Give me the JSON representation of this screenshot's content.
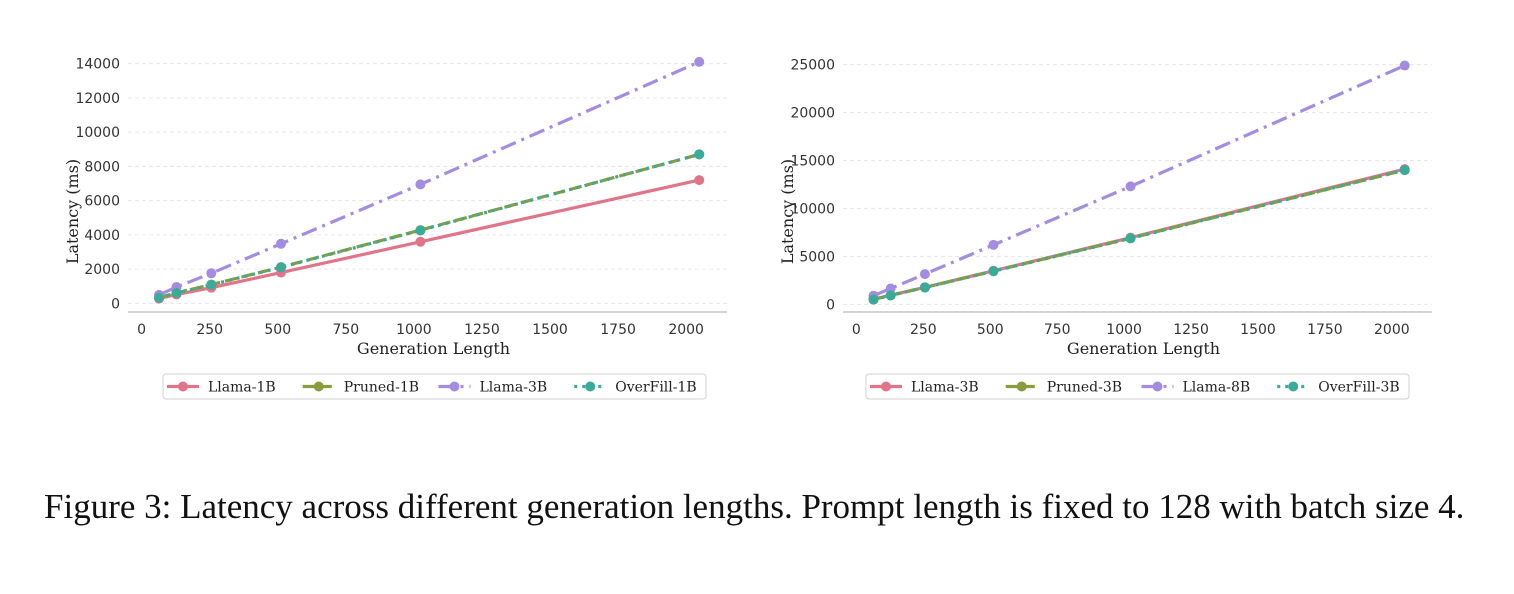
{
  "caption": "Figure 3: Latency across different generation lengths. Prompt length is fixed to 128 with batch size 4.",
  "chart_data": [
    {
      "type": "line",
      "xlabel": "Generation Length",
      "ylabel": "Latency (ms)",
      "xlim": [
        -50,
        2150
      ],
      "ylim": [
        -500,
        14500
      ],
      "xticks": [
        0,
        250,
        500,
        750,
        1000,
        1250,
        1500,
        1750,
        2000
      ],
      "yticks": [
        0,
        2000,
        4000,
        6000,
        8000,
        10000,
        12000,
        14000
      ],
      "grid": "y",
      "legend": "bottom",
      "x": [
        64,
        128,
        256,
        512,
        1024,
        2048
      ],
      "series": [
        {
          "name": "Llama-1B",
          "color": "#e0758a",
          "style": "solid",
          "values": [
            280,
            520,
            920,
            1800,
            3600,
            7200
          ]
        },
        {
          "name": "Pruned-1B",
          "color": "#8a9c3c",
          "style": "dashed",
          "values": [
            340,
            620,
            1100,
            2120,
            4280,
            8700
          ]
        },
        {
          "name": "Llama-3B",
          "color": "#a48ce0",
          "style": "dashdot",
          "values": [
            500,
            960,
            1760,
            3480,
            6950,
            14100
          ]
        },
        {
          "name": "OverFill-1B",
          "color": "#3aaa9a",
          "style": "dotted",
          "values": [
            330,
            610,
            1090,
            2110,
            4260,
            8700
          ]
        }
      ]
    },
    {
      "type": "line",
      "xlabel": "Generation Length",
      "ylabel": "Latency (ms)",
      "xlim": [
        -50,
        2150
      ],
      "ylim": [
        -800,
        26000
      ],
      "xticks": [
        0,
        250,
        500,
        750,
        1000,
        1250,
        1500,
        1750,
        2000
      ],
      "yticks": [
        0,
        5000,
        10000,
        15000,
        20000,
        25000
      ],
      "grid": "y",
      "legend": "bottom",
      "x": [
        64,
        128,
        256,
        512,
        1024,
        2048
      ],
      "series": [
        {
          "name": "Llama-3B",
          "color": "#e0758a",
          "style": "solid",
          "values": [
            520,
            950,
            1780,
            3500,
            6950,
            14100
          ]
        },
        {
          "name": "Pruned-3B",
          "color": "#8a9c3c",
          "style": "dashed",
          "values": [
            510,
            940,
            1760,
            3470,
            6900,
            14000
          ]
        },
        {
          "name": "Llama-8B",
          "color": "#a48ce0",
          "style": "dashdot",
          "values": [
            900,
            1650,
            3150,
            6200,
            12300,
            24900
          ]
        },
        {
          "name": "OverFill-3B",
          "color": "#3aaa9a",
          "style": "dotted",
          "values": [
            500,
            930,
            1750,
            3450,
            6880,
            14000
          ]
        }
      ]
    }
  ]
}
